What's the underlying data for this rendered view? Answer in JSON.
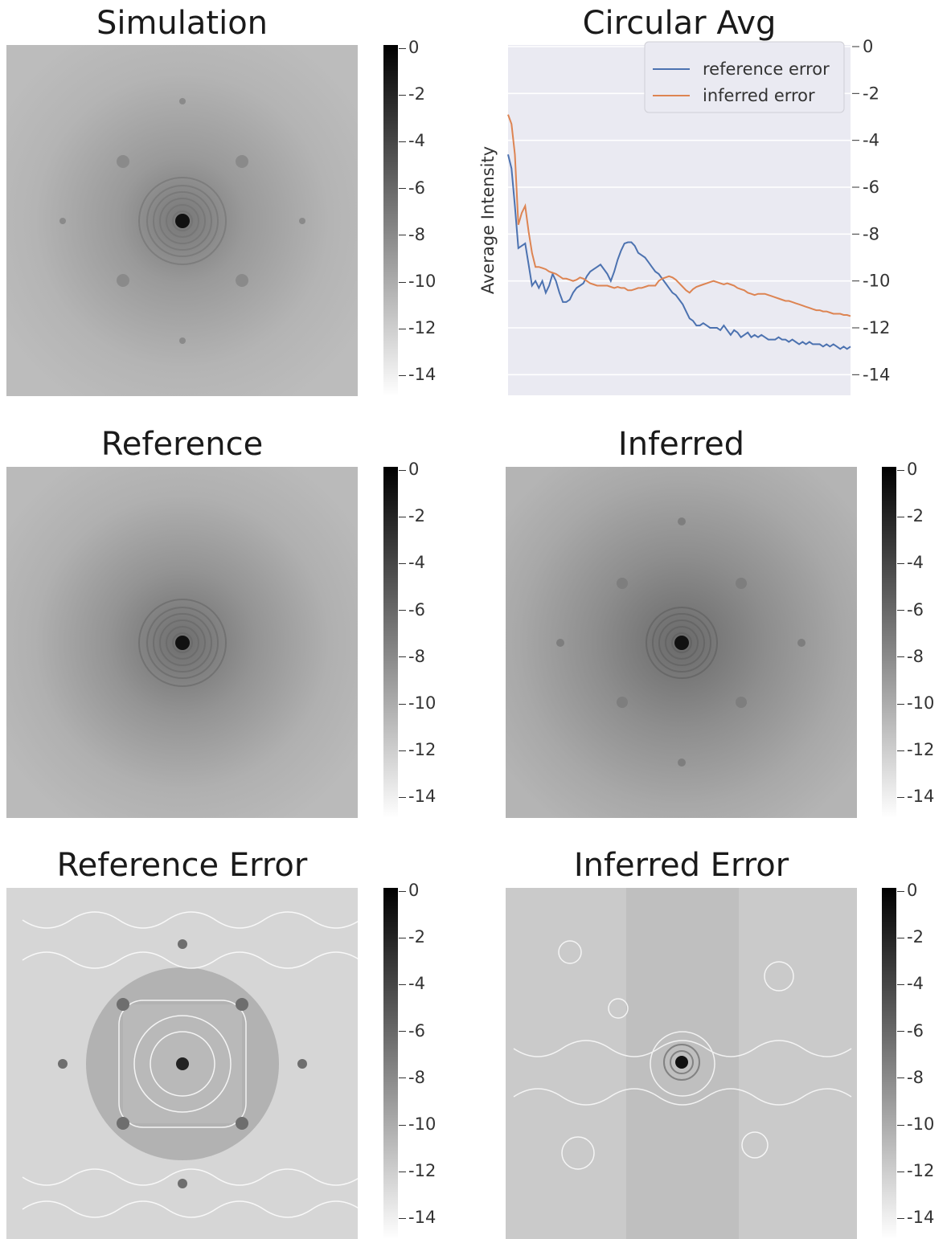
{
  "colormap": {
    "name": "gray_r",
    "min_color": "#ffffff",
    "max_color": "#000000"
  },
  "colorbar_ticks": [
    "0",
    "-2",
    "-4",
    "-6",
    "-8",
    "-10",
    "-12",
    "-14"
  ],
  "panels": {
    "simulation": {
      "title": "Simulation"
    },
    "circular_avg": {
      "title": "Circular Avg"
    },
    "reference": {
      "title": "Reference"
    },
    "inferred": {
      "title": "Inferred"
    },
    "reference_error": {
      "title": "Reference Error"
    },
    "inferred_error": {
      "title": "Inferred Error"
    }
  },
  "chart_data": {
    "type": "line",
    "title": "Circular Avg",
    "xlabel": "",
    "ylabel": "Average Intensity",
    "ylim": [
      -15,
      0
    ],
    "ytick_position": "right",
    "yticks": [
      0,
      -2,
      -4,
      -6,
      -8,
      -10,
      -12,
      -14
    ],
    "grid": true,
    "legend_position": "top-right",
    "background_color": "#eaeaf2",
    "x": [
      0,
      1,
      2,
      3,
      4,
      5,
      6,
      7,
      8,
      9,
      10,
      11,
      12,
      13,
      14,
      15,
      16,
      17,
      18,
      19,
      20,
      21,
      22,
      23,
      24,
      25,
      26,
      27,
      28,
      29,
      30,
      31,
      32,
      33,
      34,
      35,
      36,
      37,
      38,
      39,
      40,
      41,
      42,
      43,
      44,
      45,
      46,
      47,
      48,
      49,
      50,
      51,
      52,
      53,
      54,
      55,
      56,
      57,
      58,
      59,
      60,
      61,
      62,
      63,
      64,
      65,
      66,
      67,
      68,
      69,
      70,
      71,
      72,
      73,
      74,
      75,
      76,
      77,
      78,
      79,
      80,
      81,
      82,
      83,
      84,
      85,
      86,
      87,
      88,
      89,
      90,
      91,
      92,
      93,
      94,
      95,
      96,
      97,
      98,
      99,
      100
    ],
    "series": [
      {
        "name": "reference error",
        "color": "#4c72b0",
        "values": [
          -4.6,
          -5.2,
          -6.8,
          -8.6,
          -8.5,
          -8.4,
          -9.3,
          -10.2,
          -10.0,
          -10.3,
          -10.0,
          -10.5,
          -10.2,
          -9.7,
          -10.0,
          -10.5,
          -10.9,
          -10.9,
          -10.8,
          -10.5,
          -10.3,
          -10.2,
          -10.1,
          -9.8,
          -9.6,
          -9.5,
          -9.4,
          -9.3,
          -9.5,
          -9.7,
          -10.0,
          -9.6,
          -9.1,
          -8.7,
          -8.4,
          -8.35,
          -8.35,
          -8.5,
          -8.8,
          -8.9,
          -9.0,
          -9.2,
          -9.4,
          -9.6,
          -9.7,
          -9.9,
          -10.1,
          -10.3,
          -10.5,
          -10.6,
          -10.8,
          -11.0,
          -11.3,
          -11.6,
          -11.7,
          -11.9,
          -11.9,
          -11.8,
          -11.9,
          -12.0,
          -12.0,
          -12.0,
          -12.1,
          -11.9,
          -12.1,
          -12.3,
          -12.1,
          -12.2,
          -12.4,
          -12.3,
          -12.2,
          -12.4,
          -12.3,
          -12.4,
          -12.3,
          -12.4,
          -12.5,
          -12.5,
          -12.5,
          -12.4,
          -12.5,
          -12.5,
          -12.6,
          -12.5,
          -12.6,
          -12.7,
          -12.6,
          -12.7,
          -12.6,
          -12.7,
          -12.7,
          -12.7,
          -12.8,
          -12.7,
          -12.8,
          -12.7,
          -12.8,
          -12.9,
          -12.8,
          -12.9,
          -12.8
        ]
      },
      {
        "name": "inferred error",
        "color": "#dd8452",
        "values": [
          -2.9,
          -3.3,
          -4.6,
          -7.6,
          -7.1,
          -6.8,
          -7.9,
          -8.8,
          -9.4,
          -9.4,
          -9.45,
          -9.5,
          -9.6,
          -9.65,
          -9.7,
          -9.8,
          -9.9,
          -9.9,
          -9.95,
          -10.0,
          -9.95,
          -9.85,
          -9.9,
          -10.0,
          -10.1,
          -10.15,
          -10.2,
          -10.2,
          -10.2,
          -10.2,
          -10.25,
          -10.3,
          -10.25,
          -10.3,
          -10.3,
          -10.4,
          -10.4,
          -10.35,
          -10.3,
          -10.3,
          -10.25,
          -10.2,
          -10.2,
          -10.2,
          -10.0,
          -9.9,
          -9.85,
          -9.8,
          -9.85,
          -9.95,
          -10.1,
          -10.25,
          -10.4,
          -10.5,
          -10.35,
          -10.25,
          -10.2,
          -10.15,
          -10.1,
          -10.05,
          -10.0,
          -10.05,
          -10.1,
          -10.15,
          -10.1,
          -10.15,
          -10.2,
          -10.3,
          -10.35,
          -10.4,
          -10.5,
          -10.55,
          -10.6,
          -10.55,
          -10.55,
          -10.55,
          -10.6,
          -10.65,
          -10.7,
          -10.75,
          -10.8,
          -10.85,
          -10.85,
          -10.9,
          -10.95,
          -11.0,
          -11.05,
          -11.1,
          -11.15,
          -11.2,
          -11.25,
          -11.25,
          -11.3,
          -11.3,
          -11.35,
          -11.4,
          -11.4,
          -11.4,
          -11.45,
          -11.45,
          -11.5
        ]
      }
    ]
  }
}
